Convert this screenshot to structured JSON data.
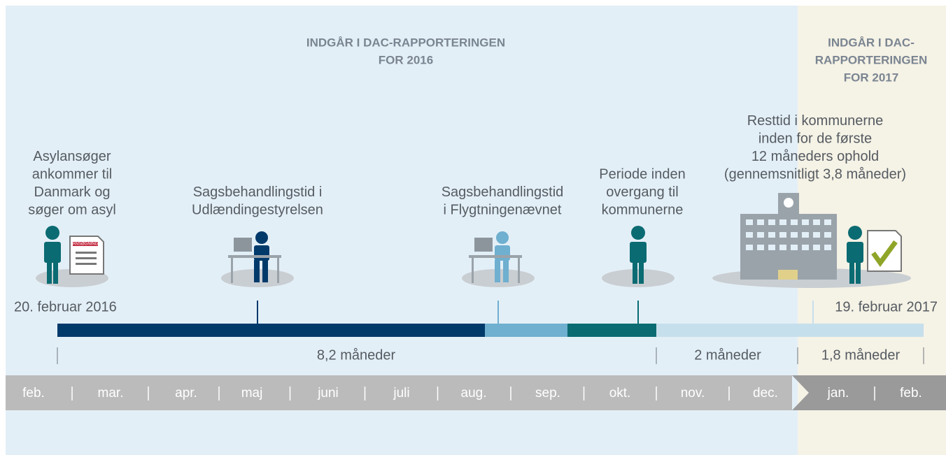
{
  "headers": [
    {
      "lines": [
        "INDGÅR I DAC-RAPPORTERINGEN",
        "FOR 2016"
      ]
    },
    {
      "lines": [
        "INDGÅR I DAC-",
        "RAPPORTERINGEN",
        "FOR 2017"
      ]
    }
  ],
  "steps": [
    {
      "lines": [
        "Asylansøger",
        "ankommer til",
        "Danmark og",
        "søger om asyl"
      ],
      "document": "ANSØGNING"
    },
    {
      "lines": [
        "Sagsbehandlingstid i",
        "Udlændingestyrelsen"
      ]
    },
    {
      "lines": [
        "Sagsbehandlingstid",
        "i Flygtningenævnet"
      ]
    },
    {
      "lines": [
        "Periode inden",
        "overgang til",
        "kommunerne"
      ]
    },
    {
      "lines": [
        "Resttid i kommunerne",
        "inden for de første",
        "12 måneders ophold",
        "(gennemsnitligt 3,8 måneder)"
      ]
    }
  ],
  "dates": {
    "start": "20. februar 2016",
    "end": "19. februar 2017"
  },
  "durations": [
    "8,2 måneder",
    "2 måneder",
    "1,8 måneder"
  ],
  "months": [
    "feb.",
    "mar.",
    "apr.",
    "maj",
    "juni",
    "juli",
    "aug.",
    "sep.",
    "okt.",
    "nov.",
    "dec.",
    "jan.",
    "feb."
  ]
}
